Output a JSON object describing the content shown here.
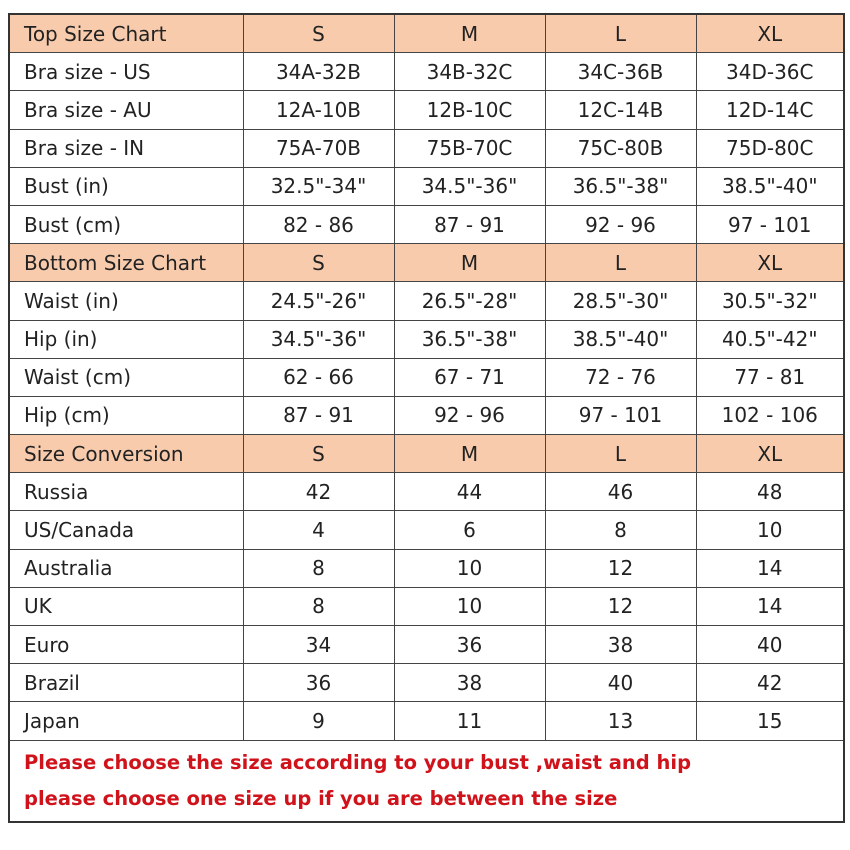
{
  "columns": [
    "S",
    "M",
    "L",
    "XL"
  ],
  "sections": [
    {
      "title": "Top Size Chart",
      "rows": [
        {
          "label": "Bra size - US",
          "values": [
            "34A-32B",
            "34B-32C",
            "34C-36B",
            "34D-36C"
          ]
        },
        {
          "label": "Bra size - AU",
          "values": [
            "12A-10B",
            "12B-10C",
            "12C-14B",
            "12D-14C"
          ]
        },
        {
          "label": "Bra size - IN",
          "values": [
            "75A-70B",
            "75B-70C",
            "75C-80B",
            "75D-80C"
          ]
        },
        {
          "label": "Bust (in)",
          "values": [
            "32.5\"-34\"",
            "34.5\"-36\"",
            "36.5\"-38\"",
            "38.5\"-40\""
          ]
        },
        {
          "label": "Bust (cm)",
          "values": [
            "82 - 86",
            "87 - 91",
            "92 - 96",
            "97 - 101"
          ]
        }
      ]
    },
    {
      "title": "Bottom Size Chart",
      "rows": [
        {
          "label": "Waist (in)",
          "values": [
            "24.5\"-26\"",
            "26.5\"-28\"",
            "28.5\"-30\"",
            "30.5\"-32\""
          ]
        },
        {
          "label": "Hip (in)",
          "values": [
            "34.5\"-36\"",
            "36.5\"-38\"",
            "38.5\"-40\"",
            "40.5\"-42\""
          ]
        },
        {
          "label": "Waist (cm)",
          "values": [
            "62 - 66",
            "67 - 71",
            "72 - 76",
            "77 - 81"
          ]
        },
        {
          "label": "Hip (cm)",
          "values": [
            "87 - 91",
            "92 - 96",
            "97 - 101",
            "102 - 106"
          ]
        }
      ]
    },
    {
      "title": "Size Conversion",
      "rows": [
        {
          "label": "Russia",
          "values": [
            "42",
            "44",
            "46",
            "48"
          ]
        },
        {
          "label": "US/Canada",
          "values": [
            "4",
            "6",
            "8",
            "10"
          ]
        },
        {
          "label": "Australia",
          "values": [
            "8",
            "10",
            "12",
            "14"
          ]
        },
        {
          "label": "UK",
          "values": [
            "8",
            "10",
            "12",
            "14"
          ]
        },
        {
          "label": "Euro",
          "values": [
            "34",
            "36",
            "38",
            "40"
          ]
        },
        {
          "label": "Brazil",
          "values": [
            "36",
            "38",
            "40",
            "42"
          ]
        },
        {
          "label": "Japan",
          "values": [
            "9",
            "11",
            "13",
            "15"
          ]
        }
      ]
    }
  ],
  "note": {
    "line1": "Please choose the size according to your bust ,waist and hip",
    "line2": "please choose one size up if you are between the size"
  },
  "colors": {
    "header_fill": "#f8cbad",
    "note_text": "#d0121b"
  }
}
